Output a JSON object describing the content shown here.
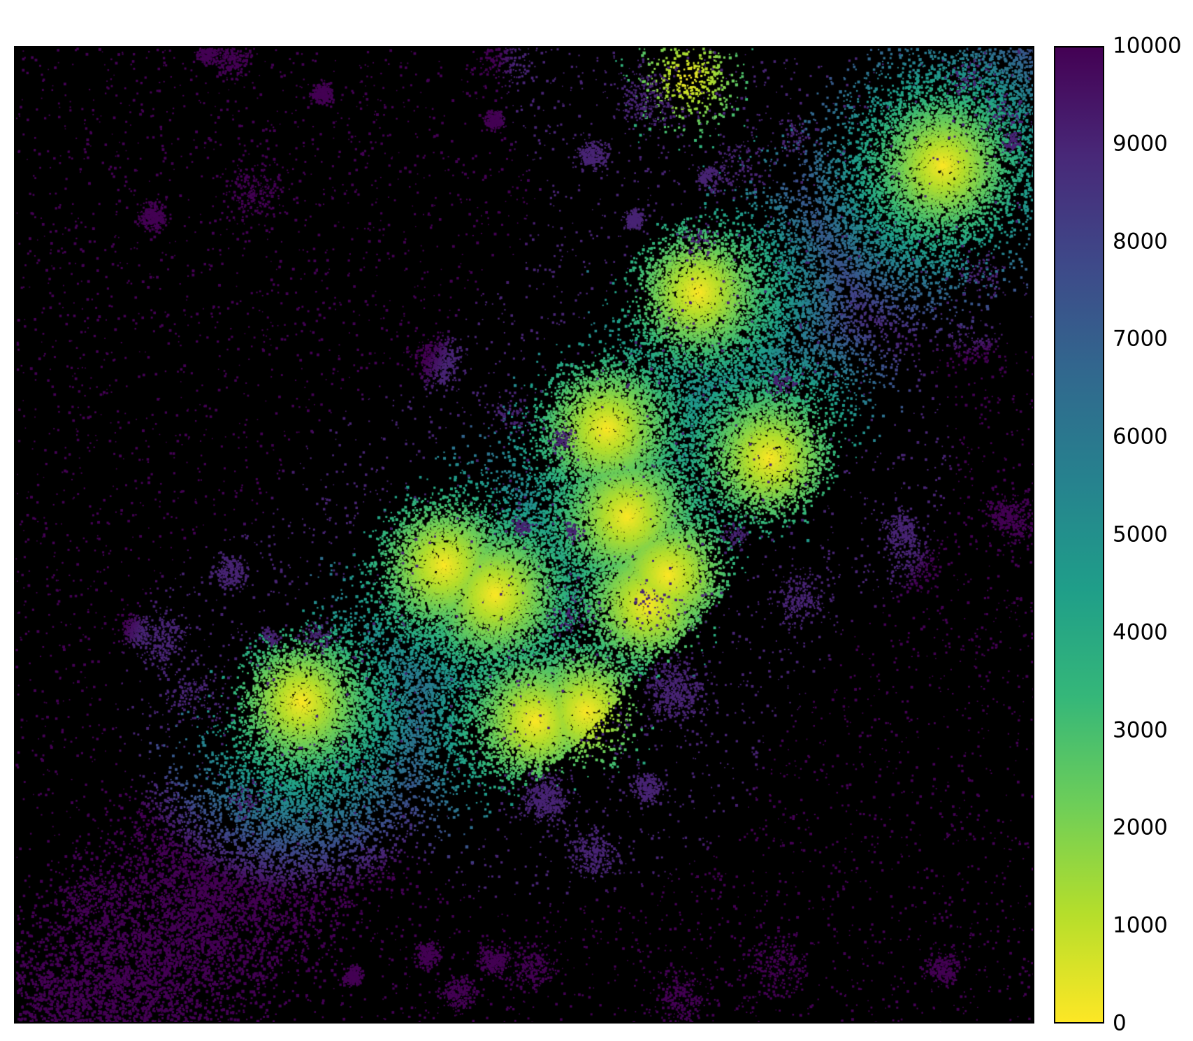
{
  "chart_data": {
    "type": "heatmap",
    "title": "",
    "xlabel": "",
    "ylabel": "",
    "background": "#000000",
    "colormap": "viridis_r",
    "colorbar": {
      "min": 0,
      "max": 10000,
      "ticks": [
        "0",
        "1000",
        "2000",
        "3000",
        "4000",
        "5000",
        "6000",
        "7000",
        "8000",
        "9000",
        "10000"
      ],
      "colors": [
        "#fde725",
        "#b5de2b",
        "#6ece58",
        "#35b779",
        "#1f9e89",
        "#26828e",
        "#31688e",
        "#3e4989",
        "#482878",
        "#440154"
      ]
    },
    "hotspots_value": 0,
    "far_value": 10000
  }
}
